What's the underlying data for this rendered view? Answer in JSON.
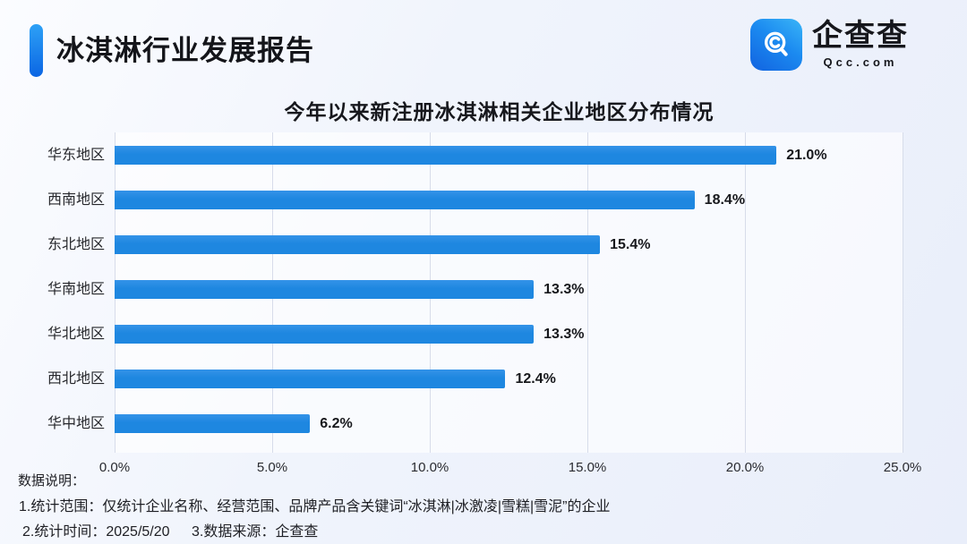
{
  "header": {
    "title": "冰淇淋行业发展报告"
  },
  "logo": {
    "name": "企查查",
    "domain": "Qcc.com",
    "icon_color_start": "#3ab5f7",
    "icon_color_end": "#1263e0"
  },
  "chart_data": {
    "type": "bar",
    "orientation": "horizontal",
    "title": "今年以来新注册冰淇淋相关企业地区分布情况",
    "categories": [
      "华东地区",
      "西南地区",
      "东北地区",
      "华南地区",
      "华北地区",
      "西北地区",
      "华中地区"
    ],
    "values": [
      21.0,
      18.4,
      15.4,
      13.3,
      13.3,
      12.4,
      6.2
    ],
    "value_labels": [
      "21.0%",
      "18.4%",
      "15.4%",
      "13.3%",
      "13.3%",
      "12.4%",
      "6.2%"
    ],
    "x_ticks": [
      "0.0%",
      "5.0%",
      "10.0%",
      "15.0%",
      "20.0%",
      "25.0%"
    ],
    "x_tick_values": [
      0,
      5,
      10,
      15,
      20,
      25
    ],
    "xlim": [
      0,
      25
    ],
    "bar_color": "#1e87e0",
    "gridline_color": "#d7dcea",
    "grid": true,
    "legend": false
  },
  "footer": {
    "heading": "数据说明：",
    "note1": "1.统计范围：仅统计企业名称、经营范围、品牌产品含关键词“冰淇淋|冰激凌|雪糕|雪泥”的企业",
    "note2_part1": "2.统计时间：2025/5/20",
    "note2_part2": "3.数据来源：企查查"
  }
}
